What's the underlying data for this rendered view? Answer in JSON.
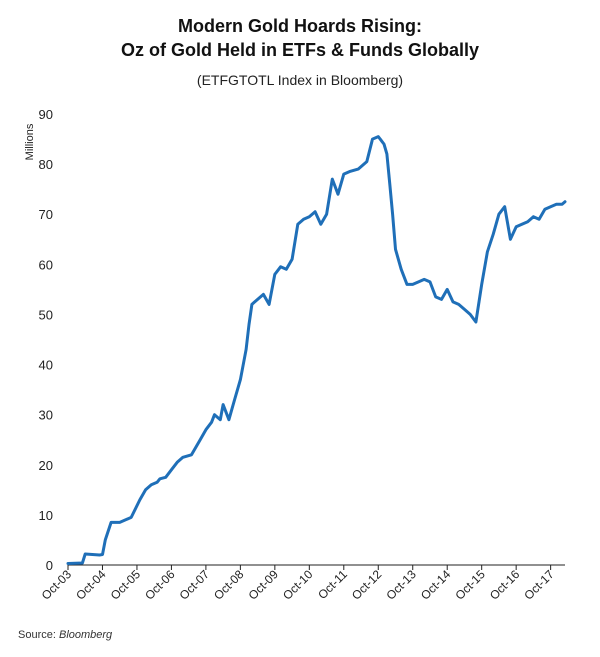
{
  "header": {
    "title_line1": "Modern Gold Hoards Rising:",
    "title_line2": "Oz of Gold Held in ETFs & Funds Globally",
    "subtitle": "(ETFGTOTL Index in Bloomberg)"
  },
  "footer": {
    "source_label": "Source:",
    "source_value": "Bloomberg"
  },
  "colors": {
    "line": "#1f6fb8",
    "axis": "#222222"
  },
  "chart_data": {
    "type": "line",
    "title": "Modern Gold Hoards Rising: Oz of Gold Held in ETFs & Funds Globally",
    "subtitle": "(ETFGTOTL Index in Bloomberg)",
    "xlabel": "",
    "ylabel": "Millions",
    "ylim": [
      0,
      90
    ],
    "yticks": [
      0,
      10,
      20,
      30,
      40,
      50,
      60,
      70,
      80,
      90
    ],
    "xlim": [
      "2003-10",
      "2018-03"
    ],
    "xticks": [
      "Oct-03",
      "Oct-04",
      "Oct-05",
      "Oct-06",
      "Oct-07",
      "Oct-08",
      "Oct-09",
      "Oct-10",
      "Oct-11",
      "Oct-12",
      "Oct-13",
      "Oct-14",
      "Oct-15",
      "Oct-16",
      "Oct-17"
    ],
    "grid": false,
    "legend": "none",
    "series": [
      {
        "x": [
          "2003-10",
          "2004-03",
          "2004-04",
          "2004-09",
          "2004-10",
          "2004-11",
          "2005-01",
          "2005-04",
          "2005-08",
          "2005-11",
          "2006-01",
          "2006-03",
          "2006-05",
          "2006-06",
          "2006-08",
          "2006-10",
          "2006-12",
          "2007-02",
          "2007-05",
          "2007-08",
          "2007-10",
          "2007-12",
          "2008-01",
          "2008-03",
          "2008-04",
          "2008-06",
          "2008-08",
          "2008-10",
          "2008-12",
          "2009-01",
          "2009-02",
          "2009-03",
          "2009-06",
          "2009-08",
          "2009-10",
          "2009-12",
          "2010-02",
          "2010-04",
          "2010-06",
          "2010-08",
          "2010-10",
          "2010-12",
          "2011-02",
          "2011-04",
          "2011-06",
          "2011-08",
          "2011-10",
          "2011-12",
          "2012-03",
          "2012-06",
          "2012-08",
          "2012-10",
          "2012-12",
          "2013-01",
          "2013-02",
          "2013-03",
          "2013-04",
          "2013-06",
          "2013-08",
          "2013-10",
          "2013-12",
          "2014-02",
          "2014-04",
          "2014-06",
          "2014-08",
          "2014-10",
          "2014-12",
          "2015-02",
          "2015-04",
          "2015-06",
          "2015-08",
          "2015-10",
          "2015-12",
          "2016-02",
          "2016-04",
          "2016-06",
          "2016-08",
          "2016-10",
          "2016-12",
          "2017-02",
          "2017-04",
          "2017-06",
          "2017-08",
          "2017-10",
          "2017-12",
          "2018-02",
          "2018-03"
        ],
        "values": [
          0.3,
          0.4,
          2.2,
          2.0,
          2.1,
          5.0,
          8.5,
          8.5,
          9.5,
          13.0,
          15.0,
          16.0,
          16.5,
          17.2,
          17.5,
          19.0,
          20.5,
          21.5,
          22.0,
          25.0,
          27.0,
          28.5,
          30.0,
          29.0,
          32.0,
          29.0,
          33.0,
          37.0,
          43.0,
          48.0,
          52.0,
          52.5,
          54.0,
          52.0,
          58.0,
          59.5,
          59.0,
          61.0,
          68.0,
          69.0,
          69.5,
          70.5,
          68.0,
          70.0,
          77.0,
          74.0,
          78.0,
          78.5,
          79.0,
          80.5,
          85.0,
          85.5,
          84.0,
          82.0,
          76.0,
          70.0,
          63.0,
          59.0,
          56.0,
          56.0,
          56.5,
          57.0,
          56.5,
          53.5,
          53.0,
          55.0,
          52.5,
          52.0,
          51.0,
          50.0,
          48.5,
          56.0,
          62.5,
          66.0,
          70.0,
          71.5,
          65.0,
          67.5,
          68.0,
          68.5,
          69.5,
          69.0,
          71.0,
          71.5,
          72.0,
          72.0,
          72.5
        ]
      }
    ]
  }
}
